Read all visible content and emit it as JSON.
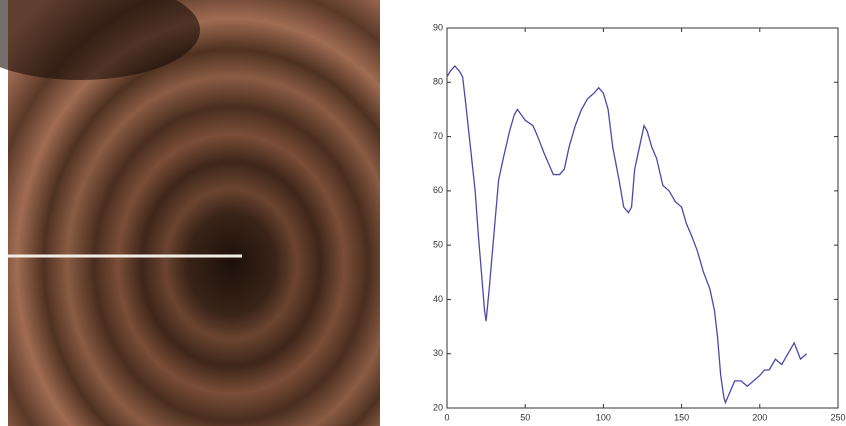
{
  "chart_data": {
    "type": "line",
    "series": [
      {
        "color": "#4a4aa8",
        "x": [
          0,
          2,
          5,
          8,
          10,
          12,
          15,
          18,
          20,
          22,
          24,
          25,
          27,
          30,
          33,
          36,
          40,
          43,
          45,
          50,
          55,
          58,
          62,
          65,
          68,
          72,
          75,
          78,
          82,
          86,
          90,
          94,
          97,
          100,
          103,
          106,
          110,
          113,
          116,
          118,
          120,
          123,
          126,
          128,
          131,
          134,
          138,
          142,
          146,
          150,
          153,
          156,
          160,
          164,
          168,
          171,
          173,
          175,
          177,
          178,
          181,
          184,
          188,
          192,
          196,
          200,
          203,
          206,
          210,
          214,
          218,
          222,
          226,
          230
        ],
        "values": [
          81,
          82,
          83,
          82,
          81,
          76,
          68,
          60,
          52,
          45,
          38,
          36,
          42,
          52,
          62,
          66,
          71,
          74,
          75,
          73,
          72,
          70,
          67,
          65,
          63,
          63,
          64,
          68,
          72,
          75,
          77,
          78,
          79,
          78,
          75,
          68,
          62,
          57,
          56,
          57,
          64,
          68,
          72,
          71,
          68,
          66,
          61,
          60,
          58,
          57,
          54,
          52,
          49,
          45,
          42,
          38,
          33,
          26,
          22,
          21,
          23,
          25,
          25,
          24,
          25,
          26,
          27,
          27,
          29,
          28,
          30,
          32,
          29,
          30
        ]
      }
    ],
    "xlim": [
      0,
      250
    ],
    "xticks": [
      0,
      50,
      100,
      150,
      200,
      250
    ],
    "ylim": [
      20,
      90
    ],
    "yticks": [
      20,
      30,
      40,
      50,
      60,
      70,
      80,
      90
    ]
  }
}
